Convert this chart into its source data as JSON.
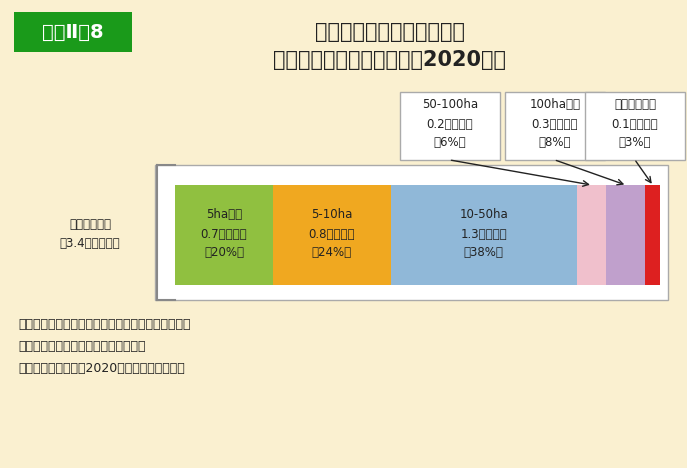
{
  "title_line1": "林業経営体の数と構成割合",
  "title_line2": "（保有山林面積規模別）（2020年）",
  "label_badge": "資料Ⅱ－8",
  "badge_color": "#1a9a1a",
  "bg_color": "#faf0d0",
  "segments": [
    {
      "label_line1": "5ha未満",
      "label_line2": "0.7万経営体",
      "label_line3": "（20%）",
      "value": 20,
      "color": "#90c040"
    },
    {
      "label_line1": "5-10ha",
      "label_line2": "0.8万経営体",
      "label_line3": "（24%）",
      "value": 24,
      "color": "#f0a820"
    },
    {
      "label_line1": "10-50ha",
      "label_line2": "1.3万経営体",
      "label_line3": "（38%）",
      "value": 38,
      "color": "#90b8d8"
    },
    {
      "label_line1": "50-100ha",
      "label_line2": "0.2万経営体",
      "label_line3": "（6%）",
      "value": 6,
      "color": "#f0c0cc"
    },
    {
      "label_line1": "100ha以上",
      "label_line2": "0.3万経営体",
      "label_line3": "（8%）",
      "value": 8,
      "color": "#c0a0cc"
    },
    {
      "label_line1": "保有山林なし",
      "label_line2": "0.1万経営体",
      "label_line3": "（3%）",
      "value": 3,
      "color": "#dd2020"
    }
  ],
  "ylabel_line1": "林業経営体数",
  "ylabel_line2": "（3.4万経営体）",
  "note1": "注１：（　）内の数値は合計に占める割合である。",
  "note2": "　２：計の不一致は四捨五入による。",
  "note3": "資料：農林水産省「2020年農林業センサス」",
  "popup_segment_indices": [
    3,
    4,
    5
  ],
  "arrow_color": "#222222",
  "text_color": "#222222",
  "white": "#ffffff",
  "border_color": "#aaaaaa"
}
